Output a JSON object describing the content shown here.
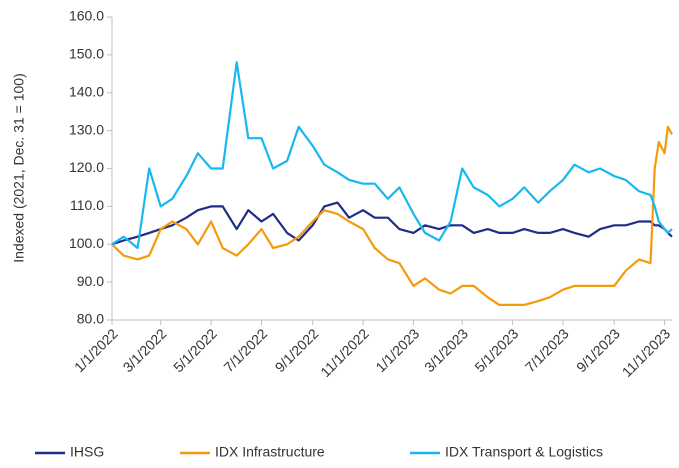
{
  "chart_data": {
    "type": "line",
    "y_label": "Indexed (2021, Dec. 31 = 100)",
    "x": [
      "2022-01-01",
      "2022-01-15",
      "2022-02-01",
      "2022-02-15",
      "2022-03-01",
      "2022-03-15",
      "2022-04-01",
      "2022-04-15",
      "2022-05-01",
      "2022-05-15",
      "2022-06-01",
      "2022-06-15",
      "2022-07-01",
      "2022-07-15",
      "2022-08-01",
      "2022-08-15",
      "2022-09-01",
      "2022-09-15",
      "2022-10-01",
      "2022-10-15",
      "2022-11-01",
      "2022-11-15",
      "2022-12-01",
      "2022-12-15",
      "2023-01-01",
      "2023-01-15",
      "2023-02-01",
      "2023-02-15",
      "2023-03-01",
      "2023-03-15",
      "2023-04-01",
      "2023-04-15",
      "2023-05-01",
      "2023-05-15",
      "2023-06-01",
      "2023-06-15",
      "2023-07-01",
      "2023-07-15",
      "2023-08-01",
      "2023-08-15",
      "2023-09-01",
      "2023-09-15",
      "2023-10-01",
      "2023-10-15",
      "2023-10-20",
      "2023-10-25",
      "2023-11-01",
      "2023-11-05",
      "2023-11-10"
    ],
    "series": [
      {
        "name": "IHSG",
        "color": "#1f2d86",
        "values": [
          100,
          101,
          102,
          103,
          104,
          105,
          107,
          109,
          110,
          110,
          104,
          109,
          106,
          108,
          103,
          101,
          105,
          110,
          111,
          107,
          109,
          107,
          107,
          104,
          103,
          105,
          104,
          105,
          105,
          103,
          104,
          103,
          103,
          104,
          103,
          103,
          104,
          103,
          102,
          104,
          105,
          105,
          106,
          106,
          105,
          105,
          104,
          103,
          102
        ]
      },
      {
        "name": "IDX Infrastructure",
        "color": "#f59a0c",
        "values": [
          100,
          97,
          96,
          97,
          104,
          106,
          104,
          100,
          106,
          99,
          97,
          100,
          104,
          99,
          100,
          102,
          106,
          109,
          108,
          106,
          104,
          99,
          96,
          95,
          89,
          91,
          88,
          87,
          89,
          89,
          86,
          84,
          84,
          84,
          85,
          86,
          88,
          89,
          89,
          89,
          89,
          93,
          96,
          95,
          120,
          127,
          124,
          131,
          129
        ]
      },
      {
        "name": "IDX Transport & Logistics",
        "color": "#17b8f0",
        "values": [
          100,
          102,
          99,
          120,
          110,
          112,
          118,
          124,
          120,
          120,
          148,
          128,
          128,
          120,
          122,
          131,
          126,
          121,
          119,
          117,
          116,
          116,
          112,
          115,
          108,
          103,
          101,
          106,
          120,
          115,
          113,
          110,
          112,
          115,
          111,
          114,
          117,
          121,
          119,
          120,
          118,
          117,
          114,
          113,
          110,
          106,
          104,
          103,
          104
        ]
      }
    ],
    "xlim": [
      "2022-01-01",
      "2023-11-10"
    ],
    "xticks": [
      {
        "value": "2022-01-01",
        "label": "1/1/2022"
      },
      {
        "value": "2022-03-01",
        "label": "3/1/2022"
      },
      {
        "value": "2022-05-01",
        "label": "5/1/2022"
      },
      {
        "value": "2022-07-01",
        "label": "7/1/2022"
      },
      {
        "value": "2022-09-01",
        "label": "9/1/2022"
      },
      {
        "value": "2022-11-01",
        "label": "11/1/2022"
      },
      {
        "value": "2023-01-01",
        "label": "1/1/2023"
      },
      {
        "value": "2023-03-01",
        "label": "3/1/2023"
      },
      {
        "value": "2023-05-01",
        "label": "5/1/2023"
      },
      {
        "value": "2023-07-01",
        "label": "7/1/2023"
      },
      {
        "value": "2023-09-01",
        "label": "9/1/2023"
      },
      {
        "value": "2023-11-01",
        "label": "11/1/2023"
      }
    ],
    "ylim": [
      80,
      160
    ],
    "yticks": [
      {
        "value": 80,
        "label": "80.0"
      },
      {
        "value": 90,
        "label": "90.0"
      },
      {
        "value": 100,
        "label": "100.0"
      },
      {
        "value": 110,
        "label": "110.0"
      },
      {
        "value": 120,
        "label": "120.0"
      },
      {
        "value": 130,
        "label": "130.0"
      },
      {
        "value": 140,
        "label": "140.0"
      },
      {
        "value": 150,
        "label": "150.0"
      },
      {
        "value": 160,
        "label": "160.0"
      }
    ],
    "grid": false,
    "legend": "bottom"
  }
}
